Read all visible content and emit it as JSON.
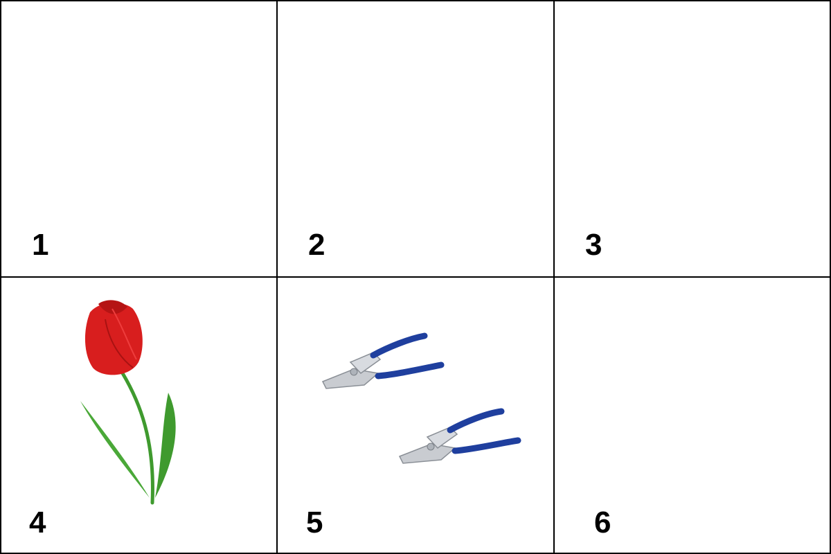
{
  "panels": [
    {
      "label": "1",
      "content": "empty"
    },
    {
      "label": "2",
      "content": "empty"
    },
    {
      "label": "3",
      "content": "empty"
    },
    {
      "label": "4",
      "content": "tulip-illustration"
    },
    {
      "label": "5",
      "content": "pliers-illustration"
    },
    {
      "label": "6",
      "content": "empty"
    }
  ],
  "colors": {
    "border": "#000000",
    "background": "#ffffff",
    "tulip_petal": "#d81e1e",
    "tulip_stem": "#3f9a2e",
    "plier_handle": "#1f3f9e",
    "plier_metal": "#c9ccd1"
  }
}
